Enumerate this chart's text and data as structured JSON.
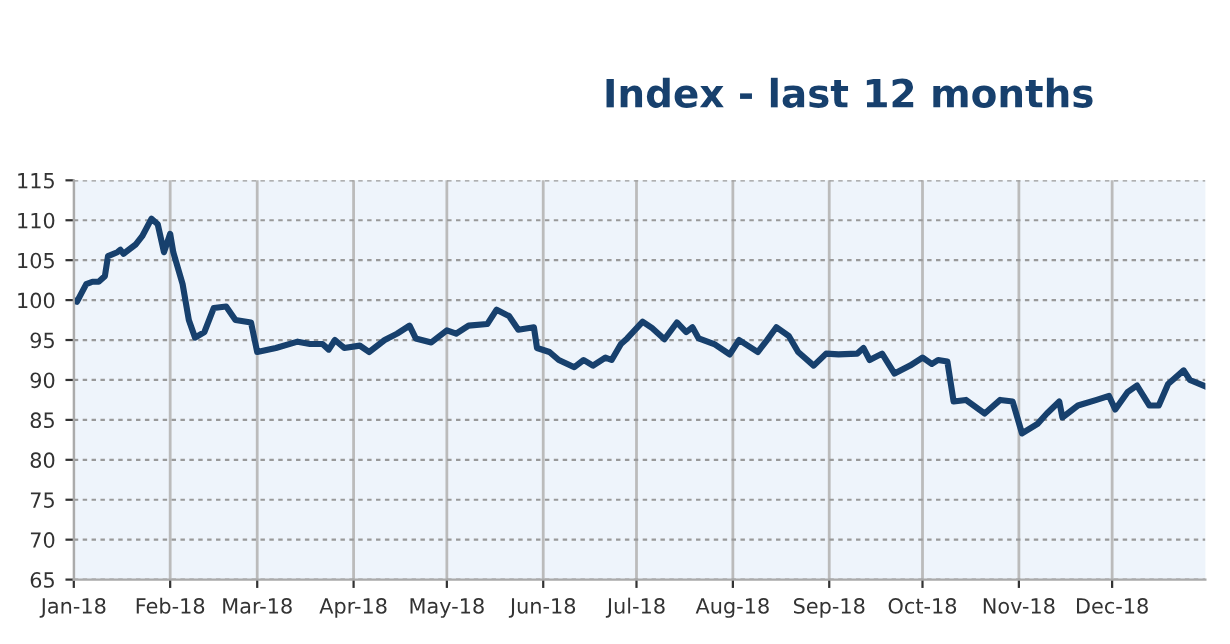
{
  "chart_data": {
    "type": "line",
    "title": "Index - last 12 months",
    "x": [
      "2018-01-01",
      "2018-01-02",
      "2018-01-05",
      "2018-01-07",
      "2018-01-09",
      "2018-01-11",
      "2018-01-12",
      "2018-01-15",
      "2018-01-16",
      "2018-01-17",
      "2018-01-21",
      "2018-01-23",
      "2018-01-26",
      "2018-01-28",
      "2018-01-30",
      "2018-02-01",
      "2018-02-02",
      "2018-02-05",
      "2018-02-07",
      "2018-02-09",
      "2018-02-12",
      "2018-02-15",
      "2018-02-19",
      "2018-02-22",
      "2018-02-27",
      "2018-03-01",
      "2018-03-07",
      "2018-03-14",
      "2018-03-18",
      "2018-03-22",
      "2018-03-24",
      "2018-03-26",
      "2018-03-29",
      "2018-04-03",
      "2018-04-06",
      "2018-04-11",
      "2018-04-15",
      "2018-04-19",
      "2018-04-21",
      "2018-04-26",
      "2018-05-01",
      "2018-05-04",
      "2018-05-08",
      "2018-05-14",
      "2018-05-17",
      "2018-05-21",
      "2018-05-24",
      "2018-05-29",
      "2018-05-30",
      "2018-06-03",
      "2018-06-06",
      "2018-06-11",
      "2018-06-14",
      "2018-06-17",
      "2018-06-21",
      "2018-06-23",
      "2018-06-26",
      "2018-06-28",
      "2018-07-03",
      "2018-07-06",
      "2018-07-10",
      "2018-07-14",
      "2018-07-17",
      "2018-07-19",
      "2018-07-21",
      "2018-07-26",
      "2018-07-31",
      "2018-08-03",
      "2018-08-09",
      "2018-08-12",
      "2018-08-15",
      "2018-08-19",
      "2018-08-22",
      "2018-08-27",
      "2018-08-31",
      "2018-09-04",
      "2018-09-10",
      "2018-09-12",
      "2018-09-14",
      "2018-09-18",
      "2018-09-22",
      "2018-09-27",
      "2018-10-01",
      "2018-10-04",
      "2018-10-06",
      "2018-10-09",
      "2018-10-11",
      "2018-10-15",
      "2018-10-21",
      "2018-10-26",
      "2018-10-30",
      "2018-11-02",
      "2018-11-07",
      "2018-11-10",
      "2018-11-14",
      "2018-11-15",
      "2018-11-20",
      "2018-11-26",
      "2018-11-30",
      "2018-12-02",
      "2018-12-06",
      "2018-12-09",
      "2018-12-13",
      "2018-12-16",
      "2018-12-19",
      "2018-12-24",
      "2018-12-26",
      "2018-12-31"
    ],
    "series": [
      {
        "color": "#17406d",
        "values": [
          100,
          99.8,
          102,
          102.3,
          102.3,
          103,
          105.5,
          106,
          106.3,
          105.8,
          107,
          108,
          110.2,
          109.5,
          106,
          108.3,
          106,
          102,
          97.5,
          95.3,
          96,
          99,
          99.2,
          97.5,
          97.2,
          93.5,
          94,
          94.8,
          94.5,
          94.5,
          93.8,
          95,
          94,
          94.3,
          93.5,
          95,
          95.8,
          96.8,
          95.2,
          94.7,
          96.2,
          95.8,
          96.8,
          97,
          98.8,
          98,
          96.3,
          96.6,
          94,
          93.5,
          92.5,
          91.6,
          92.5,
          91.8,
          92.8,
          92.5,
          94.5,
          95.2,
          97.3,
          96.5,
          95.1,
          97.2,
          96,
          96.6,
          95.2,
          94.5,
          93.2,
          95,
          93.5,
          95,
          96.6,
          95.5,
          93.5,
          91.8,
          93.3,
          93.2,
          93.3,
          94,
          92.5,
          93.3,
          90.8,
          91.8,
          92.8,
          92,
          92.5,
          92.3,
          87.3,
          87.5,
          85.8,
          87.5,
          87.3,
          83.3,
          84.5,
          85.8,
          87.3,
          85.3,
          86.8,
          87.5,
          88,
          86.3,
          88.5,
          89.3,
          86.8,
          86.8,
          89.5,
          91.2,
          90,
          89.2
        ]
      }
    ],
    "xlim": [
      "2018-01-01",
      "2018-12-31"
    ],
    "xticks": [
      {
        "value": "2018-01-01",
        "label": "Jan-18"
      },
      {
        "value": "2018-02-01",
        "label": "Feb-18"
      },
      {
        "value": "2018-03-01",
        "label": "Mar-18"
      },
      {
        "value": "2018-04-01",
        "label": "Apr-18"
      },
      {
        "value": "2018-05-01",
        "label": "May-18"
      },
      {
        "value": "2018-06-01",
        "label": "Jun-18"
      },
      {
        "value": "2018-07-01",
        "label": "Jul-18"
      },
      {
        "value": "2018-08-01",
        "label": "Aug-18"
      },
      {
        "value": "2018-09-01",
        "label": "Sep-18"
      },
      {
        "value": "2018-10-01",
        "label": "Oct-18"
      },
      {
        "value": "2018-11-01",
        "label": "Nov-18"
      },
      {
        "value": "2018-12-01",
        "label": "Dec-18"
      }
    ],
    "ylim": [
      65,
      115
    ],
    "yticks": [
      65,
      70,
      75,
      80,
      85,
      90,
      95,
      100,
      105,
      110,
      115
    ],
    "grid": true,
    "marker": "none",
    "line_style": "solid"
  }
}
